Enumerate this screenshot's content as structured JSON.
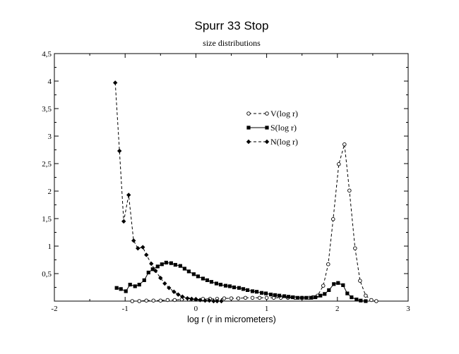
{
  "chart_data": {
    "type": "line",
    "title": "Spurr 33 Stop",
    "subtitle": "size distributions",
    "xlabel": "log r (r in micrometers)",
    "ylabel": "",
    "xlim": [
      -2,
      3
    ],
    "ylim": [
      0,
      4.5
    ],
    "x_ticks": [
      -2,
      -1,
      0,
      1,
      2,
      3
    ],
    "x_tick_labels": [
      "-2",
      "-1",
      "0",
      "1",
      "2",
      "3"
    ],
    "y_ticks": [
      0.5,
      1,
      1.5,
      2,
      2.5,
      3,
      3.5,
      4,
      4.5
    ],
    "y_tick_labels": [
      "0,5",
      "1",
      "1,5",
      "2",
      "2,5",
      "3",
      "3,5",
      "4",
      "4,5"
    ],
    "grid": false,
    "legend_position": "upper-middle-right",
    "series": [
      {
        "name": "V(log r)",
        "marker": "open-circle",
        "line": "dashed",
        "color": "#000000",
        "x": [
          -0.9,
          -0.8,
          -0.7,
          -0.6,
          -0.5,
          -0.4,
          -0.3,
          -0.2,
          -0.1,
          0.0,
          0.1,
          0.2,
          0.3,
          0.4,
          0.5,
          0.6,
          0.7,
          0.8,
          0.9,
          1.0,
          1.1,
          1.2,
          1.3,
          1.4,
          1.5,
          1.6,
          1.65,
          1.72,
          1.8,
          1.87,
          1.94,
          2.02,
          2.1,
          2.17,
          2.25,
          2.32,
          2.4,
          2.48,
          2.55
        ],
        "values": [
          0.0,
          0.0,
          0.01,
          0.01,
          0.01,
          0.02,
          0.02,
          0.03,
          0.03,
          0.03,
          0.04,
          0.04,
          0.04,
          0.05,
          0.05,
          0.05,
          0.06,
          0.06,
          0.06,
          0.06,
          0.06,
          0.06,
          0.06,
          0.06,
          0.06,
          0.06,
          0.07,
          0.1,
          0.28,
          0.67,
          1.49,
          2.49,
          2.85,
          2.01,
          0.96,
          0.37,
          0.1,
          0.02,
          0.0
        ]
      },
      {
        "name": "S(log r)",
        "marker": "filled-square",
        "line": "solid",
        "color": "#000000",
        "x": [
          -1.12,
          -1.06,
          -0.99,
          -0.93,
          -0.86,
          -0.8,
          -0.73,
          -0.67,
          -0.61,
          -0.54,
          -0.48,
          -0.42,
          -0.35,
          -0.29,
          -0.22,
          -0.16,
          -0.1,
          -0.03,
          0.03,
          0.1,
          0.16,
          0.22,
          0.29,
          0.35,
          0.42,
          0.48,
          0.54,
          0.61,
          0.67,
          0.73,
          0.8,
          0.86,
          0.93,
          0.99,
          1.06,
          1.12,
          1.18,
          1.25,
          1.31,
          1.37,
          1.44,
          1.5,
          1.56,
          1.63,
          1.69,
          1.76,
          1.82,
          1.88,
          1.95,
          2.01,
          2.08,
          2.14,
          2.2,
          2.27,
          2.33,
          2.4
        ],
        "values": [
          0.24,
          0.22,
          0.18,
          0.3,
          0.27,
          0.3,
          0.38,
          0.52,
          0.58,
          0.63,
          0.67,
          0.7,
          0.69,
          0.66,
          0.64,
          0.59,
          0.54,
          0.49,
          0.45,
          0.41,
          0.38,
          0.35,
          0.32,
          0.3,
          0.28,
          0.27,
          0.25,
          0.24,
          0.22,
          0.2,
          0.18,
          0.17,
          0.15,
          0.14,
          0.12,
          0.11,
          0.1,
          0.09,
          0.08,
          0.07,
          0.06,
          0.06,
          0.06,
          0.06,
          0.07,
          0.1,
          0.13,
          0.2,
          0.31,
          0.33,
          0.29,
          0.14,
          0.07,
          0.03,
          0.01,
          0.0
        ]
      },
      {
        "name": "N(log r)",
        "marker": "filled-diamond",
        "line": "dashed",
        "color": "#000000",
        "x": [
          -1.14,
          -1.08,
          -1.02,
          -0.95,
          -0.88,
          -0.82,
          -0.75,
          -0.7,
          -0.63,
          -0.57,
          -0.5,
          -0.44,
          -0.38,
          -0.31,
          -0.25,
          -0.19,
          -0.12,
          -0.06,
          0.0,
          0.06,
          0.13,
          0.19,
          0.25,
          0.3,
          0.36
        ],
        "values": [
          3.97,
          2.73,
          1.45,
          1.93,
          1.1,
          0.96,
          0.98,
          0.84,
          0.68,
          0.55,
          0.42,
          0.32,
          0.24,
          0.17,
          0.12,
          0.08,
          0.05,
          0.04,
          0.03,
          0.02,
          0.01,
          0.01,
          0.0,
          0.0,
          0.0
        ]
      }
    ]
  }
}
